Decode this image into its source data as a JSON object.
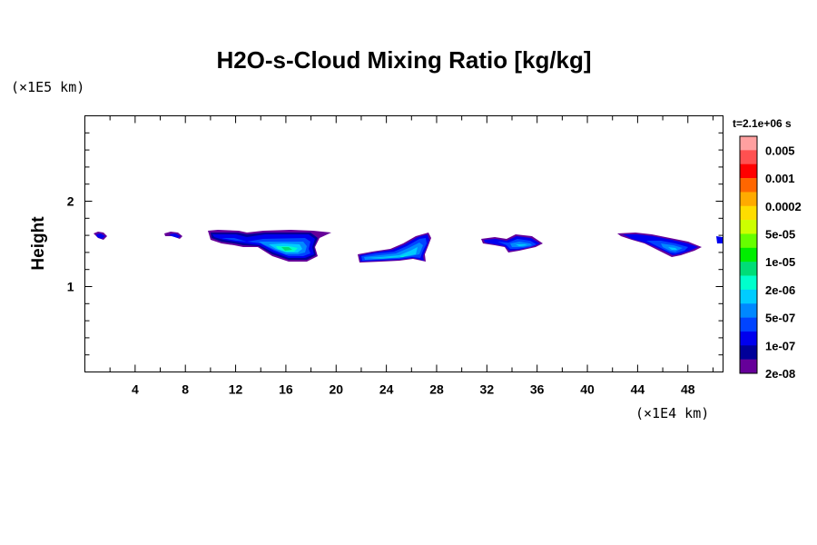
{
  "chart_data": {
    "type": "heatmap",
    "title": "H2O-s-Cloud Mixing Ratio [kg/kg]",
    "xlabel": "",
    "ylabel": "Height",
    "x_unit": "(×1E4 km)",
    "y_unit": "(×1E5 km)",
    "time_label": "t=2.1e+06 s",
    "xlim": [
      0,
      50.8
    ],
    "ylim": [
      0,
      3
    ],
    "x_ticks": [
      4,
      8,
      12,
      16,
      20,
      24,
      28,
      32,
      36,
      40,
      44,
      48
    ],
    "y_ticks": [
      1,
      2
    ],
    "grid": false,
    "legend_position": "right",
    "colorbar": {
      "labels": [
        "0.005",
        "0.001",
        "0.0002",
        "5e-05",
        "1e-05",
        "2e-06",
        "5e-07",
        "1e-07",
        "2e-08"
      ],
      "colors": [
        "#ffa0a0",
        "#ff5050",
        "#ff0000",
        "#ff6600",
        "#ffaa00",
        "#ffdd00",
        "#ccff00",
        "#66ff00",
        "#00ee00",
        "#00dd77",
        "#00ffcc",
        "#00ccff",
        "#0088ff",
        "#0044ff",
        "#0000ee",
        "#000099",
        "#660099"
      ]
    },
    "cloud_blobs": [
      {
        "x_range": [
          0.8,
          2.0
        ],
        "y_range": [
          1.55,
          1.62
        ],
        "max_level": "1e-07"
      },
      {
        "x_range": [
          6.4,
          7.8
        ],
        "y_range": [
          1.57,
          1.62
        ],
        "max_level": "1e-07"
      },
      {
        "x_range": [
          10.8,
          19.8
        ],
        "y_range": [
          1.28,
          1.65
        ],
        "max_level": "2e-06"
      },
      {
        "x_range": [
          22.0,
          27.8
        ],
        "y_range": [
          1.28,
          1.6
        ],
        "max_level": "2e-06"
      },
      {
        "x_range": [
          31.8,
          36.4
        ],
        "y_range": [
          1.39,
          1.6
        ],
        "max_level": "5e-07"
      },
      {
        "x_range": [
          42.8,
          49.2
        ],
        "y_range": [
          1.37,
          1.62
        ],
        "max_level": "5e-07"
      },
      {
        "x_range": [
          50.2,
          50.8
        ],
        "y_range": [
          1.52,
          1.58
        ],
        "max_level": "1e-07"
      }
    ]
  }
}
